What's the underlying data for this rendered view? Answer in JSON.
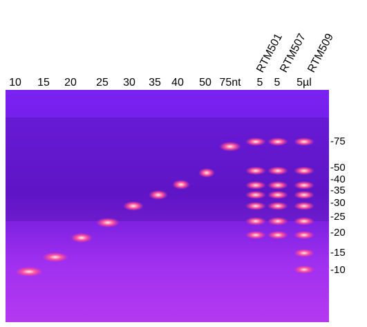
{
  "lane_labels": [
    "10",
    "15",
    "20",
    "25",
    "30",
    "35",
    "40",
    "50",
    "75nt",
    "5",
    "5",
    "5µl"
  ],
  "sample_labels": [
    "RTM501",
    "RTM507",
    "RTM509"
  ],
  "marker_labels": [
    "-75",
    "-50",
    "-40",
    "-35",
    "-30",
    "-25",
    "-20",
    "-15",
    "-10"
  ]
}
